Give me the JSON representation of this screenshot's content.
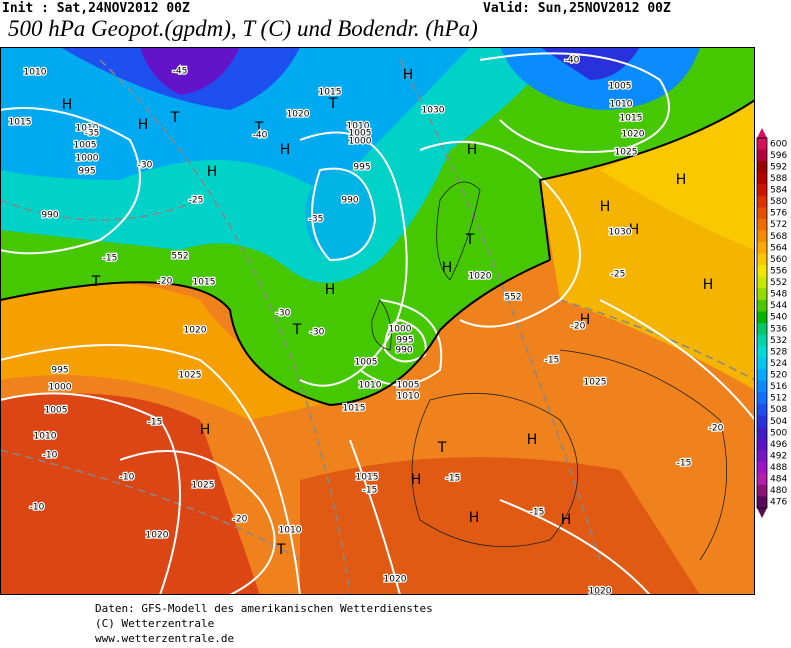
{
  "header": {
    "init": "Init : Sat,24NOV2012 00Z",
    "valid": "Valid: Sun,25NOV2012 00Z",
    "title": "500 hPa Geopot.(gpdm), T (C) und Bodendr. (hPa)"
  },
  "map": {
    "pressure_centers": [
      "H",
      "H",
      "H",
      "T",
      "H",
      "T",
      "H",
      "T",
      "H",
      "H",
      "H",
      "H",
      "T",
      "H",
      "T",
      "H",
      "T",
      "H",
      "H",
      "H",
      "H",
      "T",
      "H",
      "H",
      "H",
      "T"
    ],
    "contour_labels": [
      "1010",
      "1015",
      "1010",
      "1005",
      "1000",
      "995",
      "990",
      "1020",
      "1015",
      "1010",
      "1005",
      "1000",
      "995",
      "990",
      "-35",
      "-40",
      "-45",
      "-40",
      "1005",
      "1010",
      "1015",
      "1020",
      "1025",
      "1030",
      "1030",
      "1020",
      "1015",
      "1020",
      "1025",
      "995",
      "1000",
      "1005",
      "1010",
      "1025",
      "1020",
      "1010",
      "1015",
      "1000",
      "995",
      "990",
      "1005",
      "1010",
      "1005",
      "1010",
      "1015",
      "1025",
      "1020",
      "1020",
      "-15",
      "-10",
      "-10",
      "-10",
      "-20",
      "-15",
      "-15",
      "-15",
      "-15",
      "-20",
      "-25",
      "-20",
      "-15",
      "-25",
      "-30",
      "-35",
      "-30",
      "-30",
      "-20",
      "-15",
      "552",
      "552"
    ]
  },
  "colorbar": {
    "labels": [
      600,
      596,
      592,
      588,
      584,
      580,
      576,
      572,
      568,
      564,
      560,
      556,
      552,
      548,
      544,
      540,
      536,
      532,
      528,
      524,
      520,
      516,
      512,
      508,
      504,
      500,
      496,
      492,
      488,
      484,
      480,
      476
    ],
    "colors": [
      "#d6105a",
      "#b4003c",
      "#9a0000",
      "#b40000",
      "#cd1400",
      "#dc3200",
      "#e65000",
      "#f06e00",
      "#f58c00",
      "#faaa00",
      "#fac800",
      "#f5e600",
      "#c8e600",
      "#96dc00",
      "#50c800",
      "#00b400",
      "#00c864",
      "#00d2aa",
      "#00dcdc",
      "#00c8f0",
      "#00aaff",
      "#0a8cff",
      "#146eff",
      "#1e50f0",
      "#2832dc",
      "#3c1ec8",
      "#5a14c8",
      "#7814c8",
      "#a014c8",
      "#b41eaa",
      "#8c1478",
      "#5a0a5a"
    ]
  },
  "footer": {
    "source": "Daten: GFS-Modell des amerikanischen Wetterdienstes",
    "copyright": "(C) Wetterzentrale",
    "url": "www.wetterzentrale.de"
  }
}
